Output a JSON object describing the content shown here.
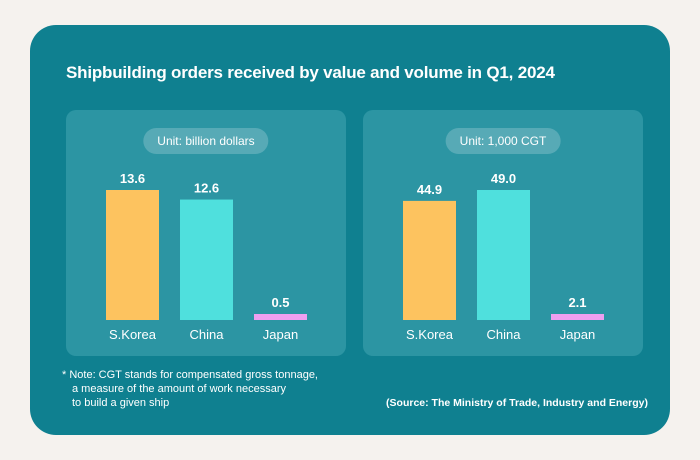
{
  "title": "Shipbuilding orders received by value and volume in Q1, 2024",
  "colors": {
    "background": "#f5f2ee",
    "card": "#0f8090",
    "panel": "#2c95a3",
    "s_korea": "#fdc35f",
    "china": "#4fe0dd",
    "japan": "#ee9ff0"
  },
  "note": {
    "line1": "* Note: CGT stands for compensated gross tonnage,",
    "line2": "a measure of the amount of work necessary",
    "line3": "to build a given ship"
  },
  "source": "(Source: The Ministry of Trade, Industry and Energy)",
  "chart_data": [
    {
      "type": "bar",
      "unit_label": "Unit: billion dollars",
      "categories": [
        "S.Korea",
        "China",
        "Japan"
      ],
      "values": [
        13.6,
        12.6,
        0.5
      ],
      "data_labels": [
        "13.6",
        "12.6",
        "0.5"
      ]
    },
    {
      "type": "bar",
      "unit_label": "Unit: 1,000 CGT",
      "categories": [
        "S.Korea",
        "China",
        "Japan"
      ],
      "values": [
        44.9,
        49.0,
        2.1
      ],
      "data_labels": [
        "44.9",
        "49.0",
        "2.1"
      ]
    }
  ]
}
